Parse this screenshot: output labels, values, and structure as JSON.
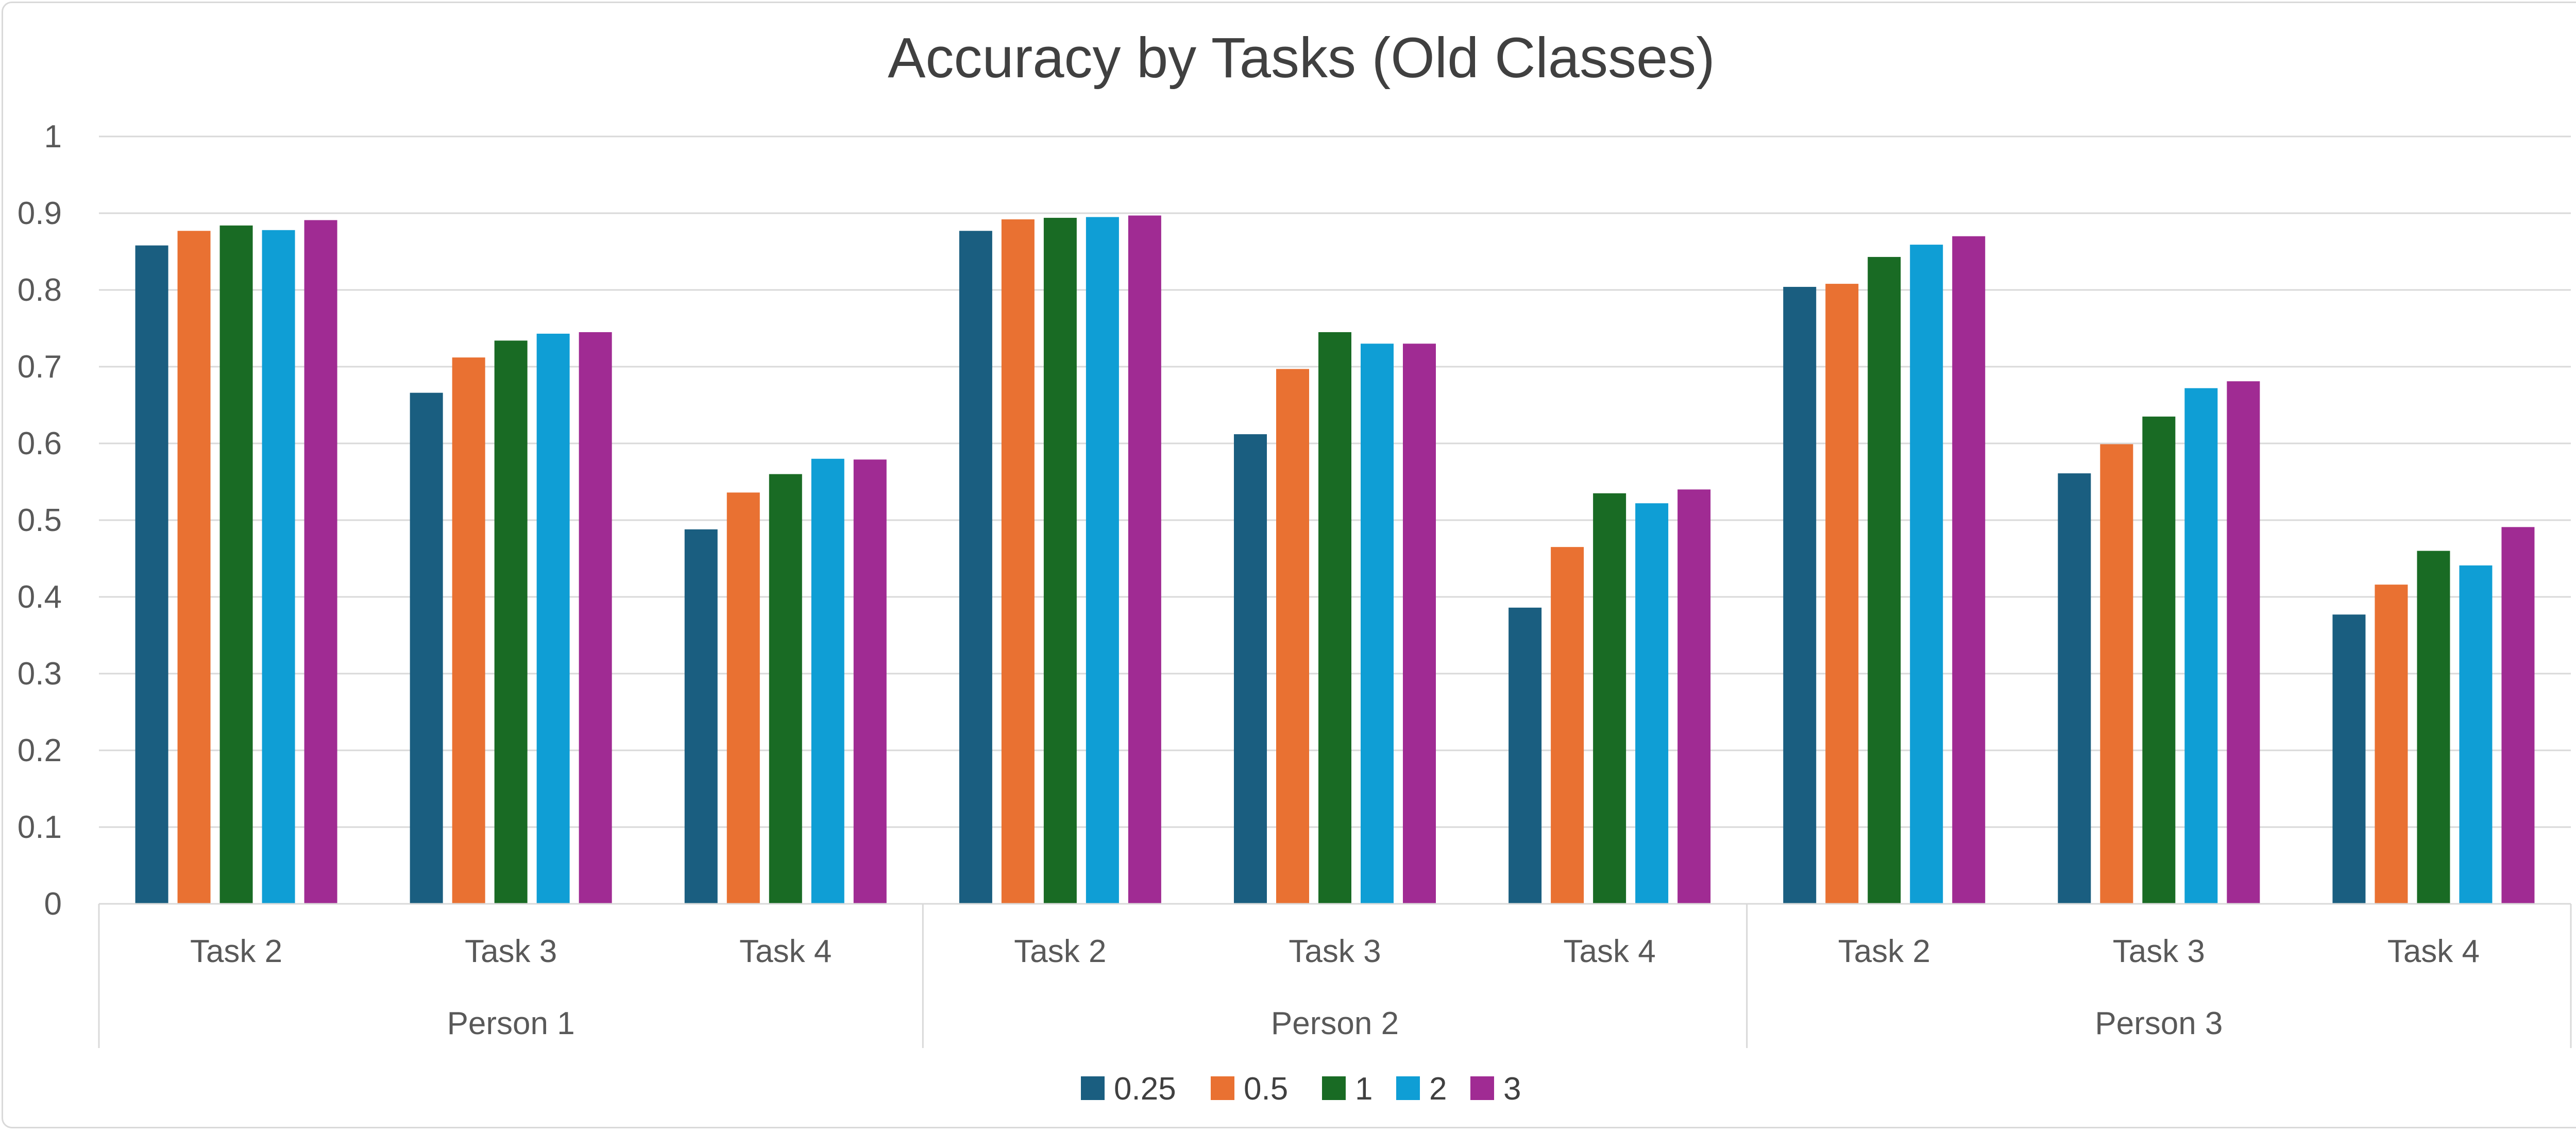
{
  "chart_data": {
    "type": "bar",
    "title": "Accuracy by Tasks (Old Classes)",
    "xlabel": "",
    "ylabel": "",
    "ylim": [
      0,
      1
    ],
    "y_ticks": [
      "0",
      "0.1",
      "0.2",
      "0.3",
      "0.4",
      "0.5",
      "0.6",
      "0.7",
      "0.8",
      "0.9",
      "1"
    ],
    "grid": true,
    "legend_position": "bottom",
    "groups": [
      "Person 1",
      "Person 2",
      "Person 3"
    ],
    "categories": [
      "Task 2",
      "Task 3",
      "Task 4",
      "Task 2",
      "Task 3",
      "Task 4",
      "Task 2",
      "Task 3",
      "Task 4"
    ],
    "series": [
      {
        "name": "0.25",
        "color": "#1a5e80",
        "values": [
          0.858,
          0.666,
          0.488,
          0.877,
          0.612,
          0.386,
          0.804,
          0.561,
          0.377
        ]
      },
      {
        "name": "0.5",
        "color": "#e97132",
        "values": [
          0.877,
          0.712,
          0.536,
          0.892,
          0.697,
          0.465,
          0.808,
          0.599,
          0.416
        ]
      },
      {
        "name": "1",
        "color": "#196b24",
        "values": [
          0.884,
          0.734,
          0.56,
          0.894,
          0.745,
          0.535,
          0.843,
          0.635,
          0.46
        ]
      },
      {
        "name": "2",
        "color": "#0f9ed5",
        "values": [
          0.878,
          0.743,
          0.58,
          0.895,
          0.73,
          0.522,
          0.859,
          0.672,
          0.441
        ]
      },
      {
        "name": "3",
        "color": "#a02b93",
        "values": [
          0.891,
          0.745,
          0.579,
          0.897,
          0.73,
          0.54,
          0.87,
          0.681,
          0.491
        ]
      }
    ]
  }
}
